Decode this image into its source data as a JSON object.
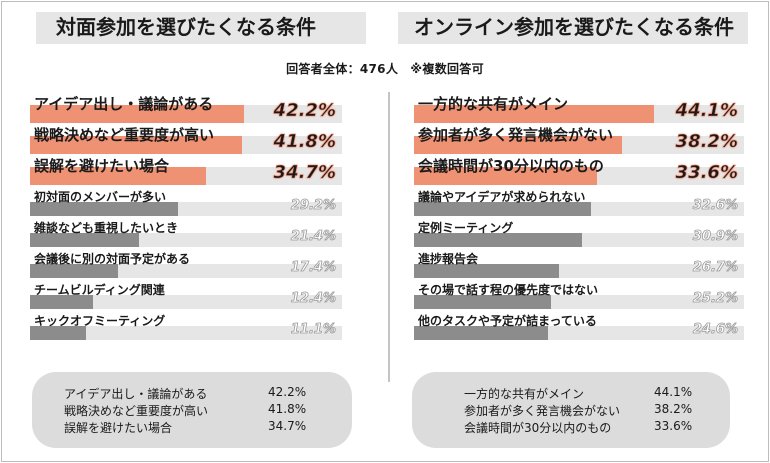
{
  "respondents_note": "回答者全体：476人　※複数回答可",
  "chart_data": [
    {
      "type": "bar",
      "orientation": "horizontal",
      "title": "対面参加を選びたくなる条件",
      "categories": [
        "アイデア出し・議論がある",
        "戦略決めなど重要度が高い",
        "誤解を避けたい場合",
        "初対面のメンバーが多い",
        "雑談なども重視したいとき",
        "会議後に別の対面予定がある",
        "チームビルディング関連",
        "キックオフミーティング"
      ],
      "values": [
        42.2,
        41.8,
        34.7,
        29.2,
        21.4,
        17.4,
        12.4,
        11.1
      ],
      "value_labels": [
        "42.2%",
        "41.8%",
        "34.7%",
        "29.2%",
        "21.4%",
        "17.4%",
        "12.4%",
        "11.1%"
      ],
      "highlight_top": 3,
      "xlim": [
        0,
        50
      ],
      "colors": {
        "highlight": "#ef9274",
        "normal": "#8c8c8c",
        "track": "#e6e6e6"
      }
    },
    {
      "type": "bar",
      "orientation": "horizontal",
      "title": "オンライン参加を選びたくなる条件",
      "categories": [
        "一方的な共有がメイン",
        "参加者が多く発言機会がない",
        "会議時間が30分以内のもの",
        "議論やアイデアが求められない",
        "定例ミーティング",
        "進捗報告会",
        "その場で話す程の優先度ではない",
        "他のタスクや予定が詰まっている"
      ],
      "values": [
        44.1,
        38.2,
        33.6,
        32.6,
        30.9,
        26.7,
        25.2,
        24.6
      ],
      "value_labels": [
        "44.1%",
        "38.2%",
        "33.6%",
        "32.6%",
        "30.9%",
        "26.7%",
        "25.2%",
        "24.6%"
      ],
      "highlight_top": 3,
      "xlim": [
        0,
        50
      ],
      "colors": {
        "highlight": "#ef9274",
        "normal": "#8c8c8c",
        "track": "#e6e6e6"
      }
    }
  ],
  "summary": [
    {
      "items": [
        {
          "label": "アイデア出し・議論がある",
          "value": "42.2%"
        },
        {
          "label": "戦略決めなど重要度が高い",
          "value": "41.8%"
        },
        {
          "label": "誤解を避けたい場合",
          "value": "34.7%"
        }
      ]
    },
    {
      "items": [
        {
          "label": "一方的な共有がメイン",
          "value": "44.1%"
        },
        {
          "label": "参加者が多く発言機会がない",
          "value": "38.2%"
        },
        {
          "label": "会議時間が30分以内のもの",
          "value": "33.6%"
        }
      ]
    }
  ]
}
